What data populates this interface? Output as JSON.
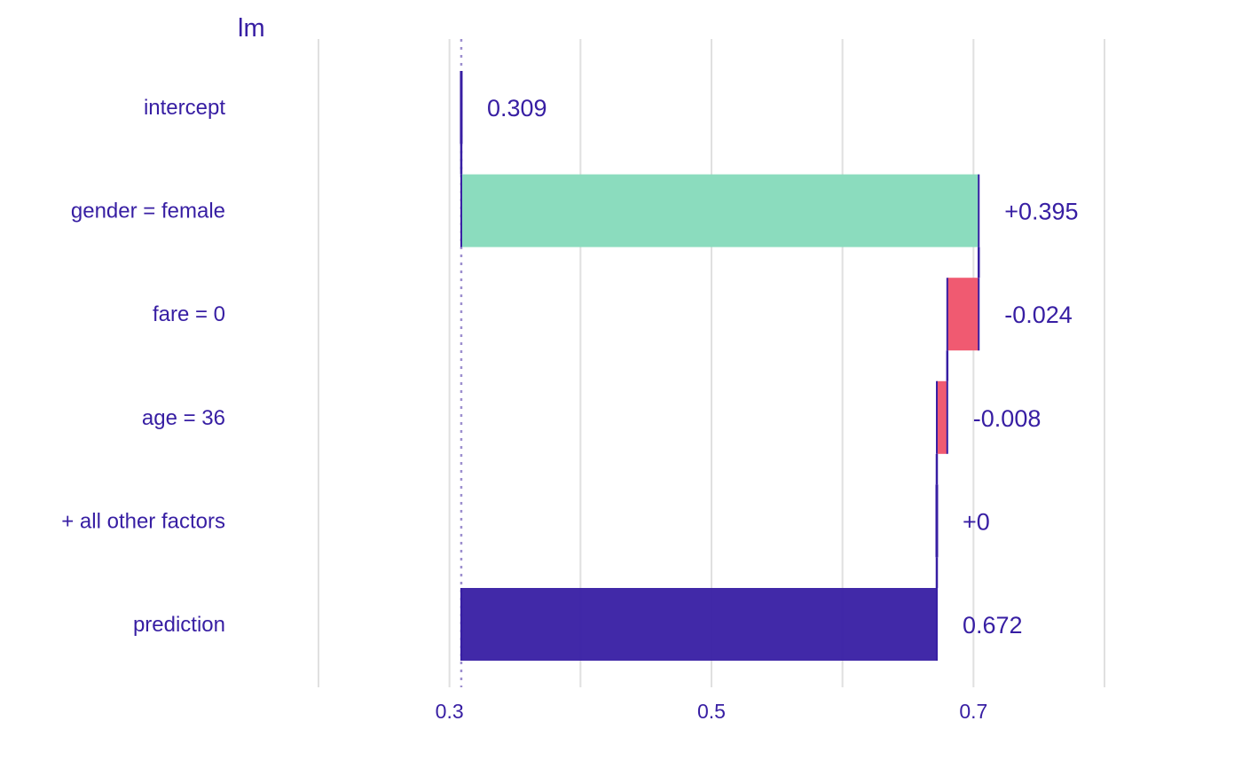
{
  "chart_data": {
    "type": "bar",
    "subtype": "break-down",
    "title": "lm",
    "xlabel": "",
    "ylabel": "",
    "xlim": [
      0.2,
      0.8
    ],
    "grid": true,
    "baseline": 0.309,
    "x_ticks": [
      {
        "value": 0.3,
        "label": "0.3"
      },
      {
        "value": 0.5,
        "label": "0.5"
      },
      {
        "value": 0.7,
        "label": "0.7"
      }
    ],
    "gridlines": [
      0.2,
      0.3,
      0.4,
      0.5,
      0.6,
      0.7,
      0.8
    ],
    "rows": [
      {
        "variable": "intercept",
        "start": 0.309,
        "end": 0.309,
        "label": "0.309",
        "kind": "intercept"
      },
      {
        "variable": "gender = female",
        "start": 0.309,
        "end": 0.704,
        "label": "+0.395",
        "kind": "positive"
      },
      {
        "variable": "fare = 0",
        "start": 0.704,
        "end": 0.68,
        "label": "-0.024",
        "kind": "negative"
      },
      {
        "variable": "age = 36",
        "start": 0.68,
        "end": 0.672,
        "label": "-0.008",
        "kind": "negative"
      },
      {
        "variable": "+ all other factors",
        "start": 0.672,
        "end": 0.672,
        "label": "+0",
        "kind": "zero"
      },
      {
        "variable": "prediction",
        "start": 0.309,
        "end": 0.672,
        "label": "0.672",
        "kind": "prediction"
      }
    ],
    "colors": {
      "positive": "#8bdcbe",
      "negative": "#f05a71",
      "prediction": "#371ea3",
      "text": "#371ea3",
      "grid": "#e0e0e0",
      "connector": "#371ea3",
      "baseline": "#9d8fcf"
    }
  }
}
